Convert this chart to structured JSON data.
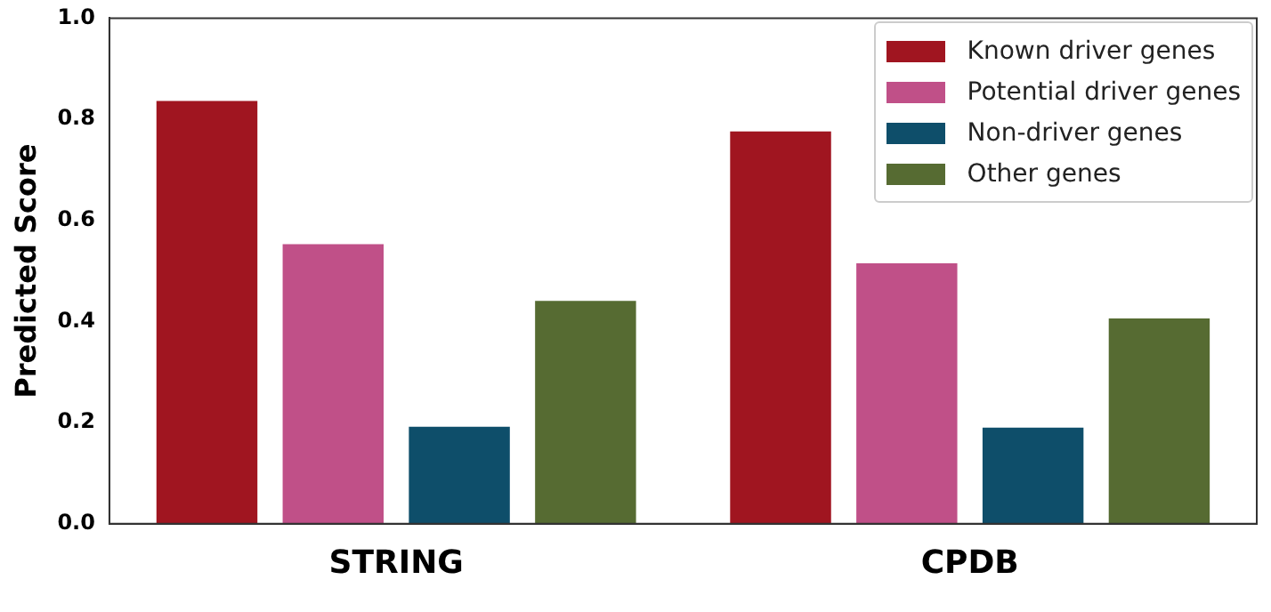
{
  "chart_data": {
    "type": "bar",
    "ylabel": "Predicted Score",
    "categories": [
      "STRING",
      "CPDB"
    ],
    "series": [
      {
        "name": "Known driver genes",
        "color": "#a01520",
        "values": [
          0.836,
          0.776
        ]
      },
      {
        "name": "Potential driver genes",
        "color": "#c05088",
        "values": [
          0.553,
          0.515
        ]
      },
      {
        "name": "Non-driver genes",
        "color": "#0e4e6a",
        "values": [
          0.192,
          0.19
        ]
      },
      {
        "name": "Other genes",
        "color": "#566b32",
        "values": [
          0.441,
          0.406
        ]
      }
    ],
    "ylim": [
      0,
      1.0
    ],
    "yticks": [
      {
        "value": 0,
        "label": "0.0"
      },
      0.2,
      0.4,
      0.6,
      0.8,
      {
        "value": 1,
        "label": "1.0"
      }
    ],
    "legend": "top right"
  }
}
